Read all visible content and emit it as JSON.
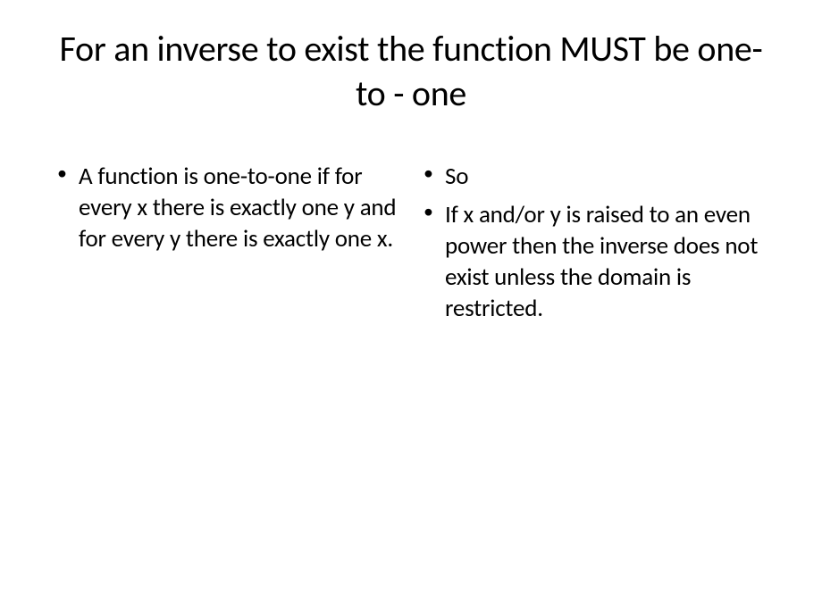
{
  "slide": {
    "title": "For an inverse to exist the function MUST be one- to - one",
    "left_column": {
      "items": [
        "A function is one-to-one if for every x there is exactly one y and for every y there is exactly one x."
      ]
    },
    "right_column": {
      "items": [
        "So",
        "If x and/or y is raised to an even power then the inverse does not exist unless the domain is restricted."
      ]
    }
  },
  "colors": {
    "background": "#ffffff",
    "text": "#000000"
  },
  "typography": {
    "title_fontsize": 40,
    "body_fontsize": 27,
    "font_family": "Calibri"
  }
}
